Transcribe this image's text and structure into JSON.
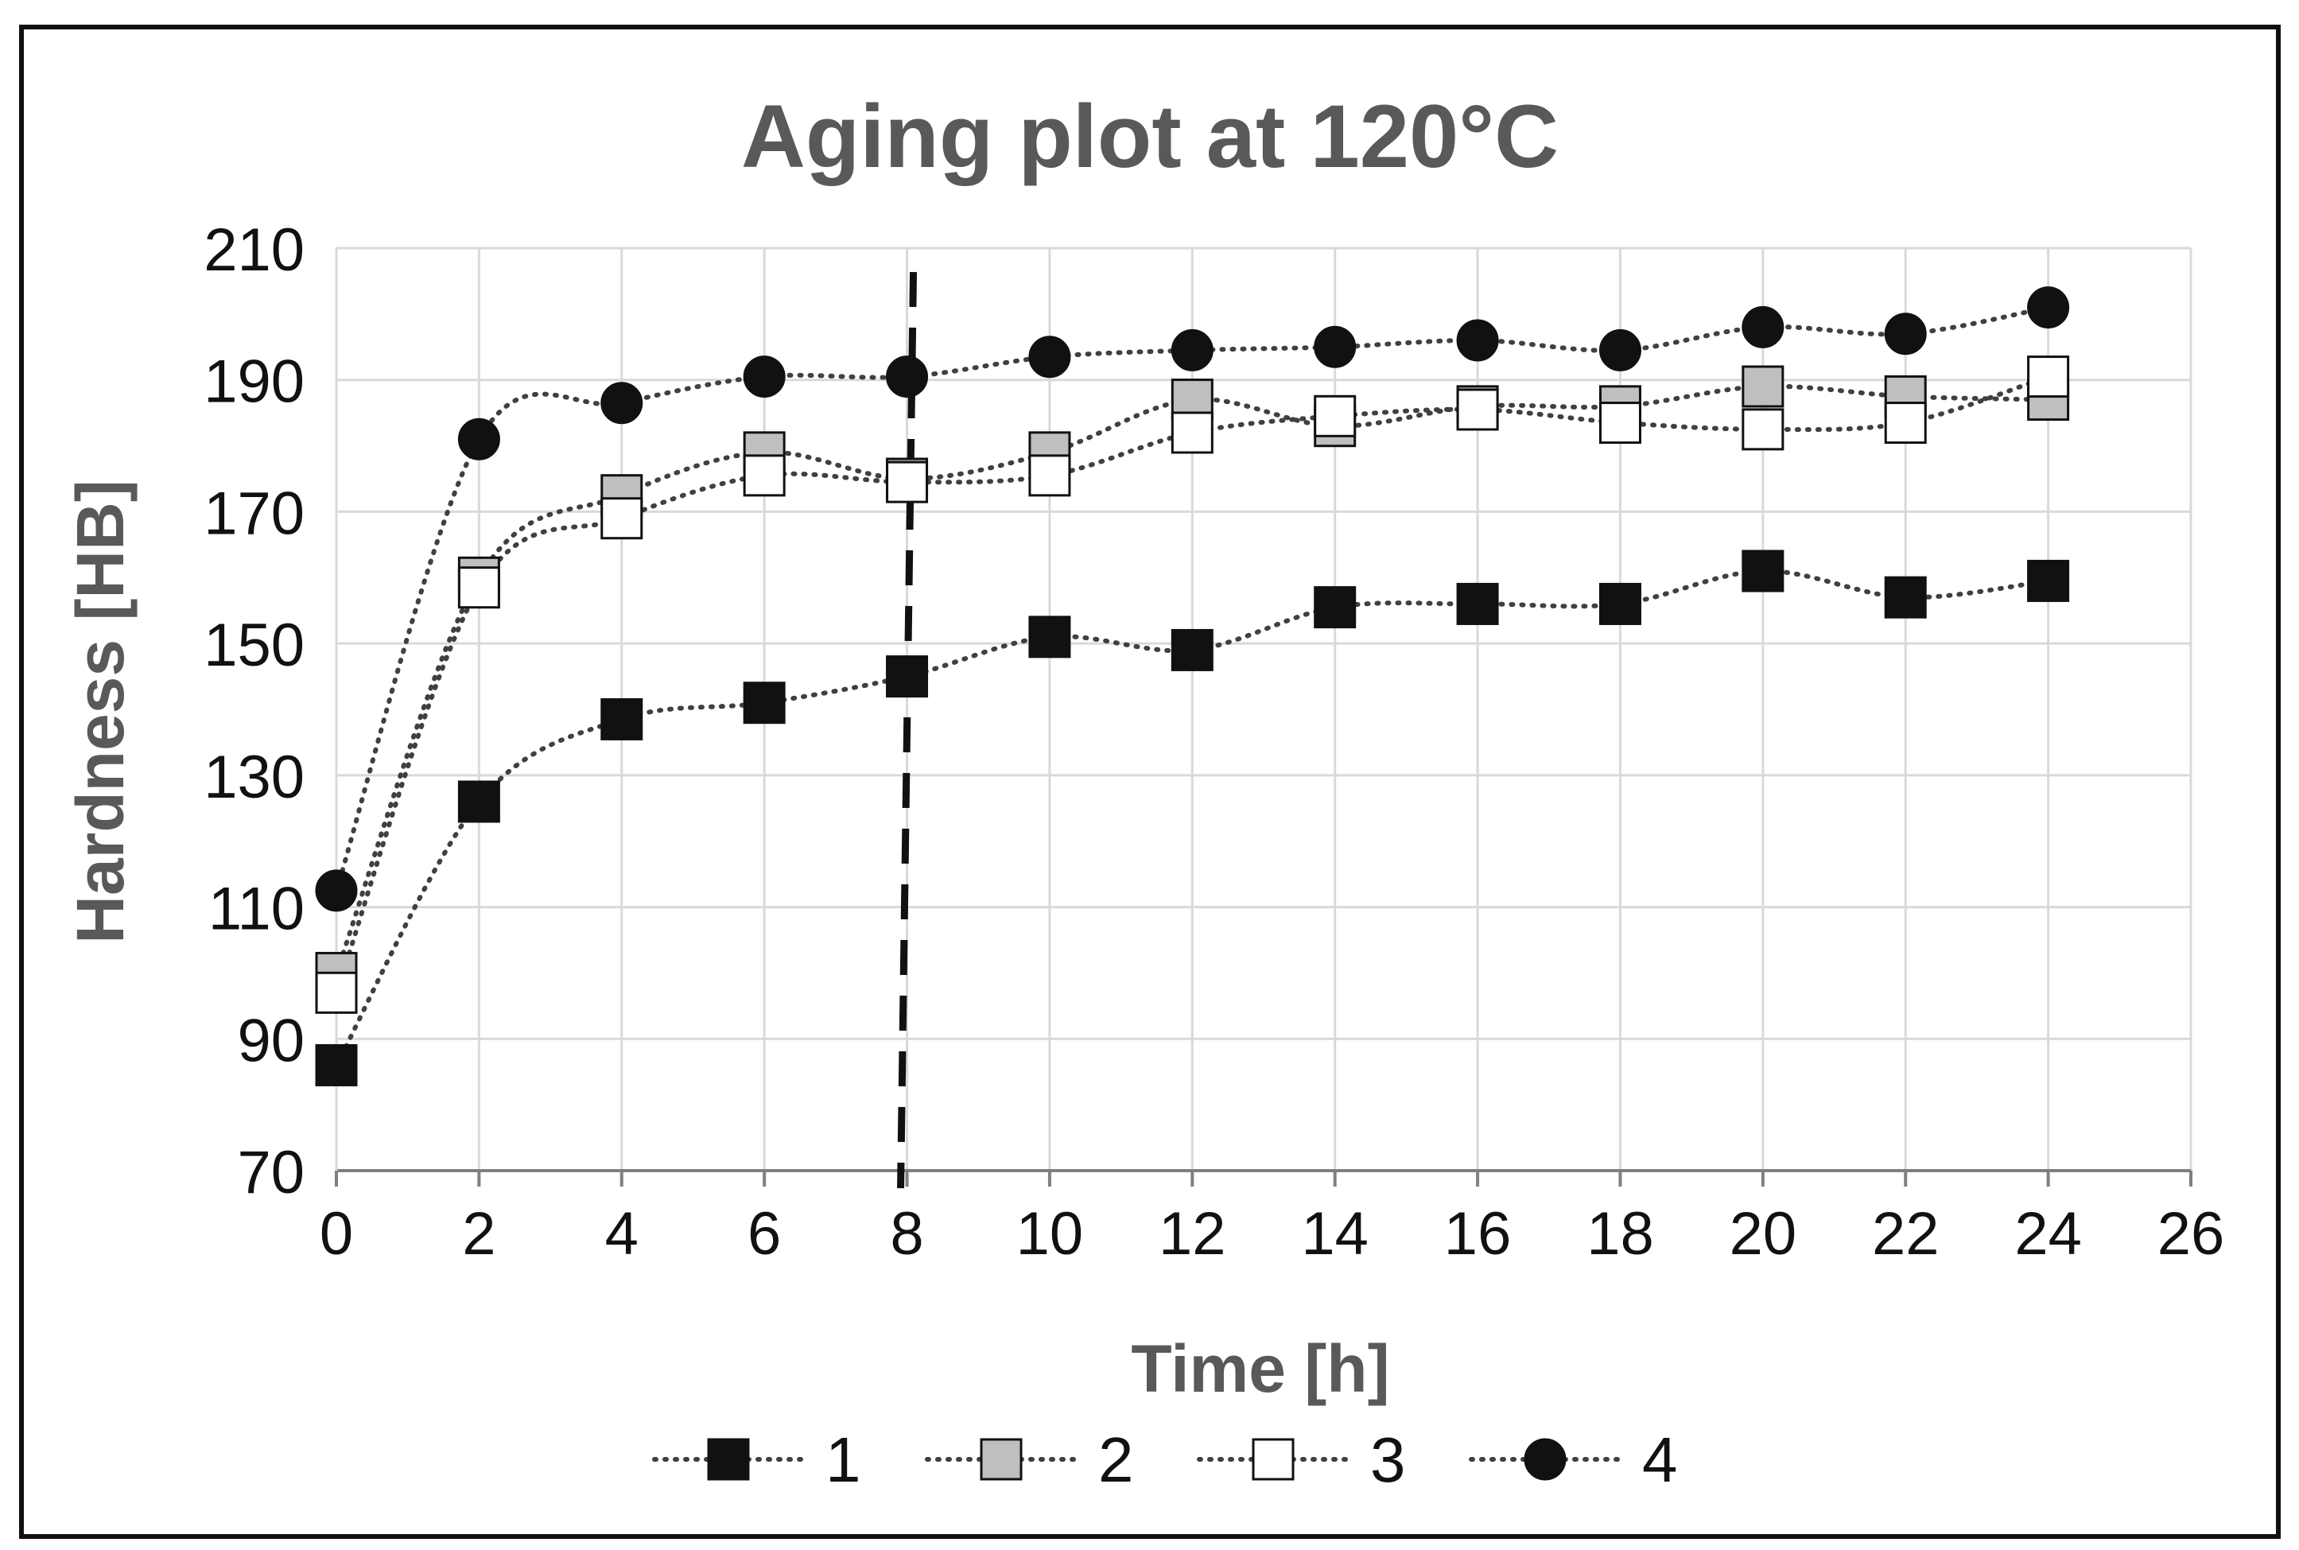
{
  "chart_data": {
    "type": "line",
    "title": "Aging plot at 120°C",
    "xlabel": "Time [h]",
    "ylabel": "Hardness [HB]",
    "xlim": [
      0,
      26
    ],
    "ylim": [
      70,
      210
    ],
    "xticks": [
      0,
      2,
      4,
      6,
      8,
      10,
      12,
      14,
      16,
      18,
      20,
      22,
      24,
      26
    ],
    "yticks": [
      70,
      90,
      110,
      130,
      150,
      170,
      190,
      210
    ],
    "grid": true,
    "legend_position": "bottom",
    "vertical_marker_x": 8,
    "x": [
      0,
      2,
      4,
      6,
      8,
      10,
      12,
      14,
      16,
      18,
      20,
      22,
      24
    ],
    "series": [
      {
        "name": "1",
        "marker": "square",
        "fill": "#111111",
        "values": [
          86,
          126,
          138.5,
          141,
          145,
          151,
          149,
          155.5,
          156,
          156,
          161,
          157,
          159.5
        ]
      },
      {
        "name": "2",
        "marker": "square",
        "fill": "#bfbfbf",
        "values": [
          100,
          160,
          172.5,
          179,
          175,
          179,
          187,
          183,
          186,
          186,
          189,
          187.5,
          187
        ]
      },
      {
        "name": "3",
        "marker": "square",
        "fill": "#ffffff",
        "values": [
          97,
          158.5,
          169,
          175.5,
          174.5,
          175.5,
          182,
          184.5,
          185.5,
          183.5,
          182.5,
          183.5,
          190.5
        ]
      },
      {
        "name": "4",
        "marker": "circle",
        "fill": "#111111",
        "values": [
          112.5,
          181,
          186.5,
          190.5,
          190.5,
          193.5,
          194.5,
          195,
          196,
          194.5,
          198,
          197,
          201
        ]
      }
    ]
  }
}
